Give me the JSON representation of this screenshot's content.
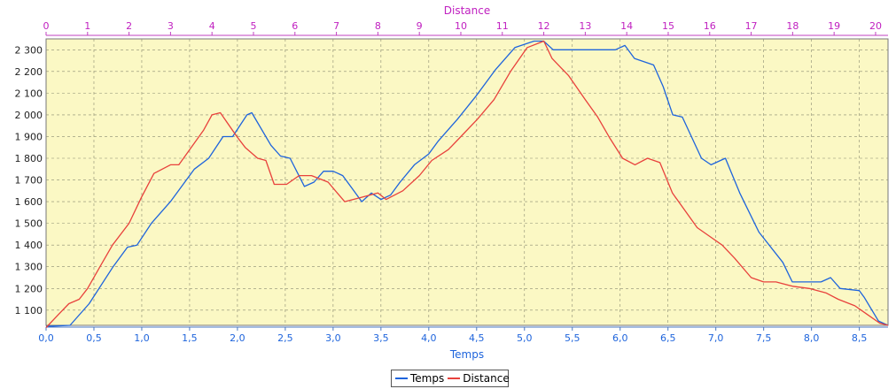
{
  "chart_data": {
    "type": "line",
    "top_axis_title": "Distance",
    "bottom_axis_title": "Temps",
    "grid": true,
    "legend_placement": "bottom-center",
    "x_bottom": {
      "min": 0,
      "max": 8.8,
      "ticks": [
        0,
        0.5,
        1,
        1.5,
        2,
        2.5,
        3,
        3.5,
        4,
        4.5,
        5,
        5.5,
        6,
        6.5,
        7,
        7.5,
        8,
        8.5
      ],
      "tick_labels": [
        "0,0",
        "0,5",
        "1,0",
        "1,5",
        "2,0",
        "2,5",
        "3,0",
        "3,5",
        "4,0",
        "4,5",
        "5,0",
        "5,5",
        "6,0",
        "6,5",
        "7,0",
        "7,5",
        "8,0",
        "8,5"
      ]
    },
    "x_top": {
      "min": 0,
      "max": 20.3,
      "ticks": [
        0,
        1,
        2,
        3,
        4,
        5,
        6,
        7,
        8,
        9,
        10,
        11,
        12,
        13,
        14,
        15,
        16,
        17,
        18,
        19,
        20
      ],
      "tick_labels": [
        "0",
        "1",
        "2",
        "3",
        "4",
        "5",
        "6",
        "7",
        "8",
        "9",
        "10",
        "11",
        "12",
        "13",
        "14",
        "15",
        "16",
        "17",
        "18",
        "19",
        "20"
      ]
    },
    "y": {
      "min": 1030,
      "max": 2350,
      "ticks": [
        1100,
        1200,
        1300,
        1400,
        1500,
        1600,
        1700,
        1800,
        1900,
        2000,
        2100,
        2200,
        2300
      ],
      "tick_labels": [
        "1 100",
        "1 200",
        "1 300",
        "1 400",
        "1 500",
        "1 600",
        "1 700",
        "1 800",
        "1 900",
        "2 000",
        "2 100",
        "2 200",
        "2 300"
      ]
    },
    "series": [
      {
        "name": "Temps",
        "color": "#1e64dc",
        "axis": "bottom",
        "points": [
          [
            0,
            1025
          ],
          [
            0.25,
            1030
          ],
          [
            0.45,
            1130
          ],
          [
            0.7,
            1300
          ],
          [
            0.85,
            1390
          ],
          [
            0.95,
            1400
          ],
          [
            1.1,
            1500
          ],
          [
            1.3,
            1600
          ],
          [
            1.55,
            1750
          ],
          [
            1.7,
            1800
          ],
          [
            1.85,
            1900
          ],
          [
            1.95,
            1900
          ],
          [
            2.1,
            2000
          ],
          [
            2.15,
            2010
          ],
          [
            2.35,
            1860
          ],
          [
            2.45,
            1810
          ],
          [
            2.55,
            1800
          ],
          [
            2.7,
            1670
          ],
          [
            2.8,
            1690
          ],
          [
            2.9,
            1740
          ],
          [
            3.0,
            1740
          ],
          [
            3.1,
            1720
          ],
          [
            3.2,
            1660
          ],
          [
            3.3,
            1600
          ],
          [
            3.4,
            1640
          ],
          [
            3.5,
            1610
          ],
          [
            3.6,
            1630
          ],
          [
            3.7,
            1690
          ],
          [
            3.85,
            1770
          ],
          [
            4.0,
            1820
          ],
          [
            4.1,
            1880
          ],
          [
            4.3,
            1980
          ],
          [
            4.5,
            2090
          ],
          [
            4.7,
            2210
          ],
          [
            4.9,
            2310
          ],
          [
            5.1,
            2340
          ],
          [
            5.2,
            2340
          ],
          [
            5.3,
            2300
          ],
          [
            5.5,
            2300
          ],
          [
            5.95,
            2300
          ],
          [
            6.05,
            2320
          ],
          [
            6.15,
            2260
          ],
          [
            6.35,
            2230
          ],
          [
            6.45,
            2130
          ],
          [
            6.55,
            2000
          ],
          [
            6.65,
            1990
          ],
          [
            6.85,
            1800
          ],
          [
            6.95,
            1770
          ],
          [
            7.1,
            1800
          ],
          [
            7.25,
            1640
          ],
          [
            7.45,
            1460
          ],
          [
            7.7,
            1320
          ],
          [
            7.8,
            1230
          ],
          [
            8.1,
            1230
          ],
          [
            8.2,
            1250
          ],
          [
            8.3,
            1200
          ],
          [
            8.5,
            1190
          ],
          [
            8.55,
            1160
          ],
          [
            8.7,
            1050
          ],
          [
            8.8,
            1030
          ]
        ]
      },
      {
        "name": "Distance",
        "color": "#e8413c",
        "axis": "top",
        "points": [
          [
            0,
            1020
          ],
          [
            0.3,
            1080
          ],
          [
            0.55,
            1130
          ],
          [
            0.8,
            1150
          ],
          [
            1.0,
            1200
          ],
          [
            1.3,
            1300
          ],
          [
            1.6,
            1400
          ],
          [
            2.0,
            1500
          ],
          [
            2.3,
            1620
          ],
          [
            2.6,
            1730
          ],
          [
            3.0,
            1770
          ],
          [
            3.2,
            1770
          ],
          [
            3.5,
            1850
          ],
          [
            3.8,
            1930
          ],
          [
            4.0,
            2000
          ],
          [
            4.2,
            2010
          ],
          [
            4.6,
            1900
          ],
          [
            4.8,
            1850
          ],
          [
            5.1,
            1800
          ],
          [
            5.3,
            1790
          ],
          [
            5.5,
            1680
          ],
          [
            5.8,
            1680
          ],
          [
            6.1,
            1720
          ],
          [
            6.4,
            1720
          ],
          [
            6.8,
            1690
          ],
          [
            7.2,
            1600
          ],
          [
            7.6,
            1620
          ],
          [
            8.0,
            1640
          ],
          [
            8.2,
            1610
          ],
          [
            8.6,
            1650
          ],
          [
            9.0,
            1720
          ],
          [
            9.3,
            1790
          ],
          [
            9.7,
            1840
          ],
          [
            10.0,
            1900
          ],
          [
            10.4,
            1980
          ],
          [
            10.8,
            2070
          ],
          [
            11.2,
            2200
          ],
          [
            11.6,
            2310
          ],
          [
            12.0,
            2340
          ],
          [
            12.2,
            2260
          ],
          [
            12.6,
            2180
          ],
          [
            13.0,
            2070
          ],
          [
            13.3,
            1990
          ],
          [
            13.6,
            1890
          ],
          [
            13.9,
            1800
          ],
          [
            14.2,
            1770
          ],
          [
            14.5,
            1800
          ],
          [
            14.8,
            1780
          ],
          [
            15.1,
            1640
          ],
          [
            15.4,
            1560
          ],
          [
            15.7,
            1480
          ],
          [
            16.0,
            1440
          ],
          [
            16.3,
            1400
          ],
          [
            16.6,
            1340
          ],
          [
            17.0,
            1250
          ],
          [
            17.3,
            1230
          ],
          [
            17.6,
            1230
          ],
          [
            18.0,
            1210
          ],
          [
            18.4,
            1200
          ],
          [
            18.8,
            1180
          ],
          [
            19.1,
            1150
          ],
          [
            19.5,
            1120
          ],
          [
            19.8,
            1080
          ],
          [
            20.1,
            1040
          ],
          [
            20.3,
            1030
          ]
        ]
      }
    ]
  }
}
